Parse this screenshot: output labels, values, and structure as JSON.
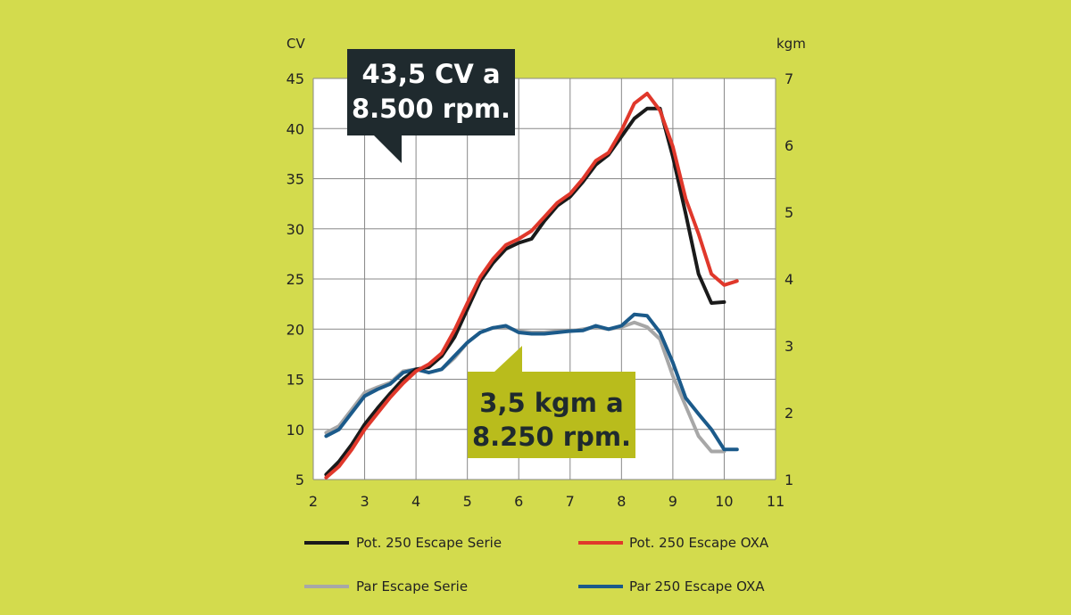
{
  "chart_data": {
    "type": "line",
    "left_unit": "CV",
    "right_unit": "kgm",
    "x_range": [
      2,
      11
    ],
    "y_left_range": [
      5,
      45
    ],
    "y_right_range": [
      1,
      7
    ],
    "x_ticks": [
      "2",
      "3",
      "4",
      "5",
      "6",
      "7",
      "8",
      "9",
      "10",
      "11"
    ],
    "y_left_ticks": [
      "5",
      "10",
      "15",
      "20",
      "25",
      "30",
      "35",
      "40",
      "45"
    ],
    "y_right_ticks": [
      "1",
      "2",
      "3",
      "4",
      "5",
      "6",
      "7"
    ],
    "grid": true,
    "legend_position": "bottom",
    "colors": {
      "background": "#d3db4d",
      "plot_area": "#ffffff",
      "grid": "#888888",
      "pot_serie": "#1a1a1a",
      "pot_oxa": "#e0382b",
      "par_serie": "#a7a7a7",
      "par_oxa": "#1b5a8a",
      "callout_dark": "#1f2a2e",
      "callout_olive": "#b9bc1c"
    },
    "series": [
      {
        "name": "Pot. 250 Escape Serie",
        "axis": "left",
        "x": [
          2.25,
          2.5,
          2.75,
          3,
          3.25,
          3.5,
          3.75,
          4,
          4.25,
          4.5,
          4.75,
          5,
          5.25,
          5.5,
          5.75,
          6,
          6.25,
          6.5,
          6.75,
          7,
          7.25,
          7.5,
          7.75,
          8,
          8.25,
          8.5,
          8.75,
          9,
          9.25,
          9.5,
          9.75,
          10
        ],
        "y": [
          5.5,
          6.8,
          8.5,
          10.5,
          12.1,
          13.6,
          15,
          16,
          16.2,
          17.3,
          19.2,
          22,
          24.8,
          26.6,
          28,
          28.6,
          29,
          30.8,
          32.3,
          33.2,
          34.7,
          36.4,
          37.4,
          39.2,
          41,
          42,
          42,
          37.2,
          31.5,
          25.5,
          22.6,
          22.7
        ]
      },
      {
        "name": "Pot. 250 Escape OXA",
        "axis": "left",
        "x": [
          2.25,
          2.5,
          2.75,
          3,
          3.25,
          3.5,
          3.75,
          4,
          4.25,
          4.5,
          4.75,
          5,
          5.25,
          5.5,
          5.75,
          6,
          6.25,
          6.5,
          6.75,
          7,
          7.25,
          7.5,
          7.75,
          8,
          8.25,
          8.5,
          8.75,
          9,
          9.25,
          9.5,
          9.75,
          10,
          10.25
        ],
        "y": [
          5.2,
          6.3,
          8,
          10,
          11.6,
          13.2,
          14.6,
          15.8,
          16.5,
          17.6,
          19.9,
          22.6,
          25.2,
          27,
          28.4,
          29,
          29.8,
          31.2,
          32.6,
          33.5,
          35,
          36.8,
          37.6,
          39.8,
          42.5,
          43.5,
          41.8,
          38.2,
          33,
          29.5,
          25.5,
          24.4,
          24.8
        ]
      },
      {
        "name": "Par Escape Serie",
        "axis": "right",
        "x": [
          2.25,
          2.5,
          2.75,
          3,
          3.25,
          3.5,
          3.75,
          4,
          4.25,
          4.5,
          4.75,
          5,
          5.25,
          5.5,
          5.75,
          6,
          6.25,
          6.5,
          6.75,
          7,
          7.25,
          7.5,
          7.75,
          8,
          8.25,
          8.5,
          8.75,
          9,
          9.25,
          9.5,
          9.75,
          10
        ],
        "y": [
          1.7,
          1.8,
          2.05,
          2.3,
          2.38,
          2.45,
          2.62,
          2.65,
          2.6,
          2.65,
          2.82,
          3.05,
          3.2,
          3.27,
          3.28,
          3.22,
          3.2,
          3.2,
          3.22,
          3.22,
          3.25,
          3.28,
          3.25,
          3.28,
          3.35,
          3.28,
          3.1,
          2.55,
          2.1,
          1.65,
          1.42,
          1.42
        ]
      },
      {
        "name": "Par 250 Escape OXA",
        "axis": "right",
        "x": [
          2.25,
          2.5,
          2.75,
          3,
          3.25,
          3.5,
          3.75,
          4,
          4.25,
          4.5,
          4.75,
          5,
          5.25,
          5.5,
          5.75,
          6,
          6.25,
          6.5,
          6.75,
          7,
          7.25,
          7.5,
          7.75,
          8,
          8.25,
          8.5,
          8.75,
          9,
          9.25,
          9.5,
          9.75,
          10,
          10.25
        ],
        "y": [
          1.65,
          1.75,
          2,
          2.25,
          2.35,
          2.43,
          2.6,
          2.65,
          2.6,
          2.65,
          2.85,
          3.05,
          3.2,
          3.27,
          3.3,
          3.2,
          3.18,
          3.18,
          3.2,
          3.22,
          3.23,
          3.3,
          3.25,
          3.3,
          3.47,
          3.45,
          3.2,
          2.75,
          2.22,
          1.98,
          1.75,
          1.45,
          1.45
        ]
      }
    ],
    "annotations": [
      {
        "id": "power_peak",
        "lines": [
          "43,5 CV a",
          "8.500 rpm."
        ]
      },
      {
        "id": "torque_peak",
        "lines": [
          "3,5 kgm a",
          "8.250 rpm."
        ]
      }
    ]
  }
}
